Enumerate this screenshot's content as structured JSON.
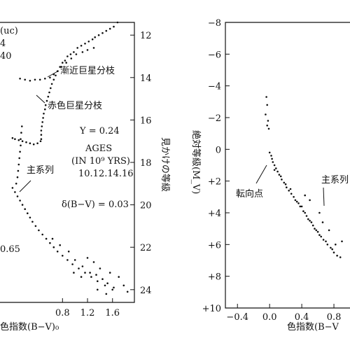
{
  "chart_data": [
    {
      "type": "scatter",
      "title": "",
      "xlabel": "色指数(B−V)₀",
      "ylabel_right": "見かけの等級",
      "xlim": [
        -0.2,
        1.95
      ],
      "ylim": [
        24.6,
        11.4
      ],
      "y_inverted": true,
      "x_ticks": [
        "0.8",
        "1.2",
        "1.6"
      ],
      "y_ticks": [
        "12",
        "14",
        "16",
        "18",
        "20",
        "22",
        "24"
      ],
      "partial_labels": [
        "(uc)",
        "4",
        "40",
        "0.65"
      ],
      "annotations": {
        "agb": "漸近巨星分枝",
        "rgb": "赤色巨星分枝",
        "ms": "主系列",
        "Y": "Y = 0.24",
        "ages_head": "AGES",
        "ages_unit": "(IN 10⁹ YRS)",
        "ages_vals": "10.12.14.16",
        "delta": "δ(B−V) = 0.03"
      },
      "series": [
        {
          "values": [
            [
              1.68,
              11.4
            ],
            [
              1.62,
              11.6
            ],
            [
              1.56,
              11.7
            ],
            [
              1.5,
              11.8
            ],
            [
              1.44,
              11.9
            ],
            [
              1.38,
              12.0
            ],
            [
              1.32,
              12.1
            ],
            [
              1.28,
              12.2
            ],
            [
              1.22,
              12.3
            ],
            [
              1.16,
              12.4
            ],
            [
              1.1,
              12.5
            ],
            [
              1.04,
              12.6
            ],
            [
              0.98,
              12.8
            ],
            [
              0.93,
              12.9
            ],
            [
              0.88,
              13.0
            ],
            [
              0.84,
              13.2
            ],
            [
              0.8,
              13.3
            ],
            [
              0.76,
              13.5
            ],
            [
              0.72,
              13.7
            ],
            [
              0.69,
              13.9
            ],
            [
              0.66,
              14.1
            ],
            [
              0.63,
              14.3
            ],
            [
              0.61,
              14.5
            ],
            [
              0.59,
              14.7
            ],
            [
              0.57,
              14.9
            ],
            [
              0.55,
              15.1
            ],
            [
              0.53,
              15.3
            ],
            [
              0.52,
              15.5
            ],
            [
              0.5,
              15.7
            ],
            [
              0.49,
              15.9
            ],
            [
              0.48,
              16.1
            ],
            [
              0.47,
              16.3
            ],
            [
              0.46,
              16.5
            ],
            [
              0.46,
              16.7
            ],
            [
              0.46,
              16.9
            ],
            [
              0.45,
              17.0
            ],
            [
              0.4,
              17.1
            ],
            [
              0.34,
              17.15
            ],
            [
              0.28,
              17.1
            ],
            [
              0.22,
              17.05
            ],
            [
              0.16,
              17.0
            ],
            [
              0.1,
              16.95
            ],
            [
              0.04,
              16.9
            ],
            [
              0.0,
              16.85
            ],
            [
              1.3,
              12.6
            ],
            [
              1.2,
              12.7
            ],
            [
              1.12,
              12.8
            ],
            [
              1.02,
              12.9
            ],
            [
              0.94,
              13.1
            ],
            [
              0.86,
              13.3
            ],
            [
              0.78,
              13.5
            ],
            [
              0.72,
              13.7
            ],
            [
              0.66,
              13.85
            ],
            [
              0.6,
              14.0
            ],
            [
              0.52,
              14.05
            ],
            [
              0.44,
              14.1
            ],
            [
              0.36,
              14.1
            ],
            [
              0.28,
              14.15
            ],
            [
              0.2,
              14.1
            ],
            [
              0.12,
              14.05
            ],
            [
              0.15,
              16.3
            ],
            [
              0.14,
              16.6
            ],
            [
              0.13,
              16.9
            ],
            [
              0.13,
              17.2
            ],
            [
              0.12,
              17.5
            ],
            [
              0.11,
              17.8
            ],
            [
              0.1,
              18.1
            ],
            [
              0.09,
              18.4
            ],
            [
              0.08,
              18.7
            ],
            [
              0.06,
              19.0
            ],
            [
              0.0,
              19.2
            ],
            [
              0.04,
              19.4
            ],
            [
              0.08,
              19.6
            ],
            [
              0.12,
              19.8
            ],
            [
              0.16,
              20.0
            ],
            [
              0.2,
              20.2
            ],
            [
              0.24,
              20.4
            ],
            [
              0.28,
              20.6
            ],
            [
              0.32,
              20.8
            ],
            [
              0.37,
              21.0
            ],
            [
              0.42,
              21.2
            ],
            [
              0.48,
              21.4
            ],
            [
              0.54,
              21.6
            ],
            [
              0.6,
              21.8
            ],
            [
              0.66,
              22.0
            ],
            [
              0.72,
              22.2
            ],
            [
              0.8,
              22.4
            ],
            [
              0.88,
              22.6
            ],
            [
              0.96,
              22.8
            ],
            [
              1.06,
              23.0
            ],
            [
              1.16,
              23.2
            ],
            [
              1.26,
              23.4
            ],
            [
              1.36,
              23.6
            ],
            [
              1.48,
              23.8
            ],
            [
              1.6,
              24.0
            ],
            [
              1.0,
              22.6
            ],
            [
              1.12,
              22.9
            ],
            [
              1.24,
              23.2
            ],
            [
              1.34,
              23.3
            ],
            [
              1.44,
              23.5
            ],
            [
              1.52,
              23.7
            ],
            [
              1.7,
              23.4
            ],
            [
              1.78,
              23.8
            ],
            [
              1.84,
              24.1
            ],
            [
              1.4,
              23.0
            ],
            [
              1.3,
              22.7
            ],
            [
              1.2,
              22.5
            ],
            [
              0.9,
              22.2
            ],
            [
              0.76,
              21.9
            ],
            [
              0.64,
              21.6
            ],
            [
              1.5,
              24.2
            ],
            [
              1.62,
              23.9
            ],
            [
              1.36,
              24.0
            ],
            [
              1.1,
              23.4
            ],
            [
              0.98,
              23.2
            ],
            [
              1.56,
              23.2
            ]
          ]
        }
      ]
    },
    {
      "type": "scatter",
      "title": "",
      "xlabel": "色指数(B−V",
      "ylabel": "絶対等級(M_V)",
      "xlim": [
        -0.55,
        1.0
      ],
      "ylim": [
        10.1,
        -8.1
      ],
      "y_inverted": true,
      "x_ticks": [
        "−0.4",
        "0.0",
        "0.4",
        "0.8"
      ],
      "y_ticks": [
        "−8",
        "−6",
        "−4",
        "−2",
        "0",
        "+2",
        "+4",
        "+6",
        "+8",
        "+10"
      ],
      "annotations": {
        "turnoff": "転向点",
        "ms": "主系列"
      },
      "series": [
        {
          "values": [
            [
              -0.04,
              -3.3
            ],
            [
              -0.03,
              -2.8
            ],
            [
              -0.05,
              -2.2
            ],
            [
              -0.02,
              -1.8
            ],
            [
              -0.03,
              -1.5
            ],
            [
              -0.01,
              -1.3
            ],
            [
              0.0,
              0.2
            ],
            [
              0.02,
              0.4
            ],
            [
              0.03,
              0.6
            ],
            [
              0.04,
              0.8
            ],
            [
              0.06,
              1.0
            ],
            [
              0.08,
              1.2
            ],
            [
              0.1,
              1.4
            ],
            [
              0.12,
              1.6
            ],
            [
              0.15,
              1.9
            ],
            [
              0.18,
              2.1
            ],
            [
              0.21,
              2.4
            ],
            [
              0.24,
              2.6
            ],
            [
              0.27,
              2.8
            ],
            [
              0.3,
              3.0
            ],
            [
              0.34,
              3.3
            ],
            [
              0.38,
              3.6
            ],
            [
              0.42,
              3.9
            ],
            [
              0.46,
              4.2
            ],
            [
              0.5,
              4.5
            ],
            [
              0.54,
              4.8
            ],
            [
              0.58,
              5.1
            ],
            [
              0.62,
              5.4
            ],
            [
              0.67,
              5.7
            ],
            [
              0.72,
              6.0
            ],
            [
              0.76,
              6.2
            ],
            [
              0.8,
              6.5
            ],
            [
              0.84,
              6.7
            ],
            [
              0.06,
              1.3
            ],
            [
              0.14,
              1.7
            ],
            [
              0.2,
              2.2
            ],
            [
              0.26,
              2.5
            ],
            [
              0.32,
              3.2
            ],
            [
              0.36,
              3.4
            ],
            [
              0.4,
              3.6
            ],
            [
              0.44,
              4.0
            ],
            [
              0.48,
              4.4
            ],
            [
              0.52,
              4.6
            ],
            [
              0.56,
              5.0
            ],
            [
              0.6,
              5.2
            ],
            [
              0.64,
              5.5
            ],
            [
              0.7,
              5.8
            ],
            [
              0.78,
              6.3
            ],
            [
              0.82,
              6.0
            ],
            [
              0.88,
              6.8
            ],
            [
              0.44,
              2.9
            ],
            [
              0.5,
              3.2
            ],
            [
              0.62,
              4.0
            ],
            [
              0.66,
              4.6
            ],
            [
              0.74,
              5.1
            ],
            [
              0.9,
              5.8
            ]
          ]
        }
      ]
    }
  ]
}
